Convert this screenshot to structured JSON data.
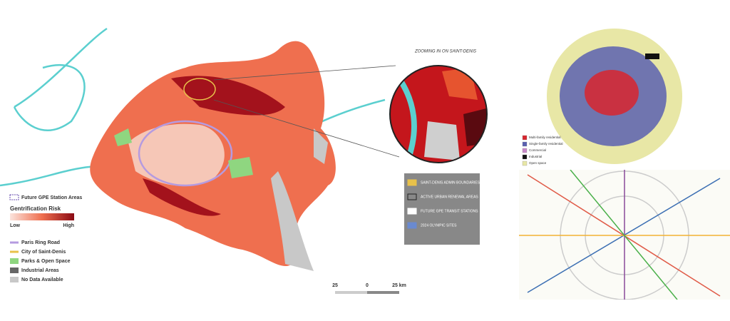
{
  "zoom_title": "ZOOMING IN ON SAINT-DENIS",
  "main_legend": {
    "station_areas": "Future GPE Station Areas",
    "risk_title": "Gentrification Risk",
    "low": "Low",
    "high": "High",
    "items": [
      "Paris Ring Road",
      "City of Saint-Denis",
      "Parks & Open Space",
      "Industrial Areas",
      "No Data Available"
    ]
  },
  "scale_bar": {
    "labels": [
      "25",
      "0",
      "25 km"
    ]
  },
  "zoom_legend": {
    "items": [
      "SAINT-DENIS ADMIN BOUNDARIES",
      "ACTIVE URBAN RENEWAL AREAS",
      "FUTURE GPE TRANSIT STATIONS",
      "2024 OLYMPIC SITES"
    ]
  },
  "landuse_legend": {
    "items": [
      "Multi-family residential",
      "Single-family residential",
      "Commercial",
      "Industrial",
      "Open space"
    ]
  }
}
